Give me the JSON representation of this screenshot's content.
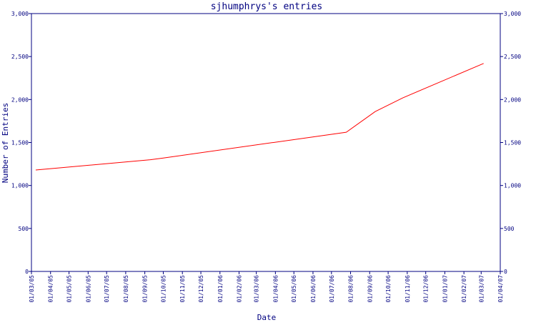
{
  "chart_data": {
    "type": "line",
    "title": "sjhumphrys's entries",
    "xlabel": "Date",
    "ylabel": "Number of Entries",
    "x_tick_labels": [
      "01/03/05",
      "01/04/05",
      "01/05/05",
      "01/06/05",
      "01/07/05",
      "01/08/05",
      "01/09/05",
      "01/10/05",
      "01/11/05",
      "01/12/05",
      "01/01/06",
      "01/02/06",
      "01/03/06",
      "01/04/06",
      "01/05/06",
      "01/06/06",
      "01/07/06",
      "01/08/06",
      "01/09/06",
      "01/10/06",
      "01/11/06",
      "01/12/06",
      "01/01/07",
      "01/02/07",
      "01/03/07",
      "01/04/07"
    ],
    "y_tick_labels": [
      "0",
      "500",
      "1,000",
      "1,500",
      "2,000",
      "2,500",
      "3,000"
    ],
    "y_tick_values": [
      0,
      500,
      1000,
      1500,
      2000,
      2500,
      3000
    ],
    "ylim": [
      0,
      3000
    ],
    "xlim": [
      "2005-03-01",
      "2007-04-01"
    ],
    "series": [
      {
        "color": "#ff0000",
        "points": [
          {
            "x": "2005-03-08",
            "y": 1180
          },
          {
            "x": "2005-09-10",
            "y": 1300
          },
          {
            "x": "2005-10-01",
            "y": 1320
          },
          {
            "x": "2006-07-25",
            "y": 1620
          },
          {
            "x": "2006-09-10",
            "y": 1860
          },
          {
            "x": "2006-10-25",
            "y": 2020
          },
          {
            "x": "2007-03-05",
            "y": 2420
          }
        ]
      }
    ],
    "grid": false,
    "right_axis": true,
    "colors": {
      "axis": "#000080",
      "text": "#000080",
      "line": "#ff0000"
    }
  }
}
